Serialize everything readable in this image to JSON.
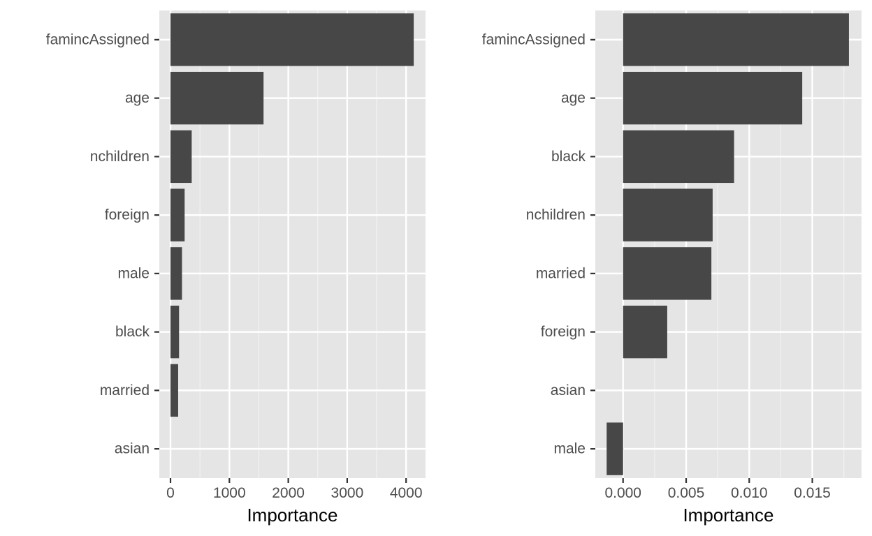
{
  "colors": {
    "panel_background": "#e5e5e5",
    "grid_major": "#ffffff",
    "grid_minor": "#f2f2f2",
    "bar_fill": "#474747",
    "tick_color": "#333333"
  },
  "chart_data": [
    {
      "type": "bar",
      "orientation": "horizontal",
      "title": "",
      "xlabel": "Importance",
      "ylabel": "",
      "categories": [
        "famincAssigned",
        "age",
        "nchildren",
        "foreign",
        "male",
        "black",
        "married",
        "asian"
      ],
      "values": [
        4130,
        1580,
        360,
        240,
        195,
        145,
        130,
        0
      ],
      "xlim": [
        -190,
        4330
      ],
      "xticks": [
        0,
        1000,
        2000,
        3000,
        4000
      ],
      "xtick_labels": [
        "0",
        "1000",
        "2000",
        "3000",
        "4000"
      ],
      "grid": true
    },
    {
      "type": "bar",
      "orientation": "horizontal",
      "title": "",
      "xlabel": "Importance",
      "ylabel": "",
      "categories": [
        "famincAssigned",
        "age",
        "black",
        "nchildren",
        "married",
        "foreign",
        "asian",
        "male"
      ],
      "values": [
        0.0179,
        0.0142,
        0.0088,
        0.0071,
        0.007,
        0.0035,
        0.0,
        -0.0013
      ],
      "xlim": [
        -0.0022,
        0.0189
      ],
      "xticks": [
        0.0,
        0.005,
        0.01,
        0.015
      ],
      "xtick_labels": [
        "0.000",
        "0.005",
        "0.010",
        "0.015"
      ],
      "grid": true
    }
  ]
}
